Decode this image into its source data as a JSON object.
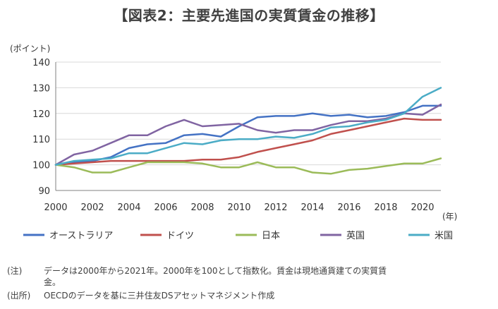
{
  "title": "【図表2：主要先進国の実質賃金の推移】",
  "chart_data": {
    "type": "line",
    "title": "【図表2：主要先進国の実質賃金の推移】",
    "ylabel": "(ポイント)",
    "xlabel": "(年)",
    "ylim": [
      90,
      140
    ],
    "yticks": [
      90,
      100,
      110,
      120,
      130,
      140
    ],
    "xlim": [
      2000,
      2021
    ],
    "xticks": [
      2000,
      2002,
      2004,
      2006,
      2008,
      2010,
      2012,
      2014,
      2016,
      2018,
      2020
    ],
    "grid": "horizontal",
    "legend": "bottom",
    "x": [
      2000,
      2001,
      2002,
      2003,
      2004,
      2005,
      2006,
      2007,
      2008,
      2009,
      2010,
      2011,
      2012,
      2013,
      2014,
      2015,
      2016,
      2017,
      2018,
      2019,
      2020,
      2021
    ],
    "series": [
      {
        "name": "オーストラリア",
        "color": "#4472c4",
        "values": [
          100,
          101,
          101.5,
          103,
          106.5,
          108,
          108.5,
          111.5,
          112,
          111,
          115,
          118.5,
          119,
          119,
          120,
          119,
          119.5,
          118.5,
          119,
          120.5,
          123,
          123
        ]
      },
      {
        "name": "ドイツ",
        "color": "#c0504d",
        "values": [
          100,
          100.5,
          101,
          101.5,
          101.5,
          101.5,
          101.5,
          101.5,
          102,
          102,
          103,
          105,
          106.5,
          108,
          109.5,
          112,
          113.5,
          115,
          116.5,
          118,
          117.5,
          117.5
        ]
      },
      {
        "name": "日本",
        "color": "#9bbb59",
        "values": [
          100,
          99,
          97,
          97,
          99,
          101,
          101,
          101,
          100.5,
          99,
          99,
          101,
          99,
          99,
          97,
          96.5,
          98,
          98.5,
          99.5,
          100.5,
          100.5,
          102.5
        ]
      },
      {
        "name": "英国",
        "color": "#8064a2",
        "values": [
          100,
          104,
          105.5,
          108.5,
          111.5,
          111.5,
          115,
          117.5,
          115,
          115.5,
          116,
          113.5,
          112.5,
          113.5,
          113.5,
          115.5,
          117,
          117,
          118,
          120,
          119.5,
          123.5
        ]
      },
      {
        "name": "米国",
        "color": "#4bacc6",
        "values": [
          100,
          101.5,
          102,
          102.5,
          104.5,
          104.5,
          106.5,
          108.5,
          108,
          109.5,
          110,
          110,
          111,
          110.5,
          112,
          114.5,
          115,
          116.5,
          117.5,
          120,
          126.5,
          130
        ]
      }
    ]
  },
  "notes": [
    {
      "tag": "(注)",
      "text": "データは2000年から2021年。2000年を100として指数化。賃金は現地通貨建ての実質賃",
      "cont": "金。"
    },
    {
      "tag": "(出所)",
      "text": "OECDのデータを基に三井住友DSアセットマネジメント作成"
    }
  ]
}
